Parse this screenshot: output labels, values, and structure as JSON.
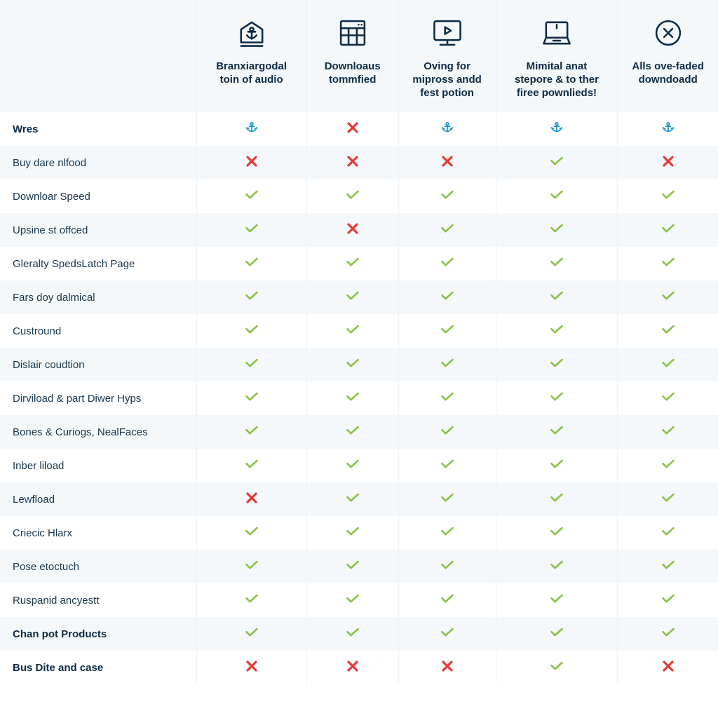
{
  "type": "comparison-table",
  "background_color": "#ffffff",
  "alt_row_color": "#f5f8fa",
  "border_color": "#e8eef2",
  "header_icon_color": "#0b2a45",
  "check_color": "#8bc34a",
  "x_color": "#e53935",
  "anchor_color": "#2196d4",
  "text_color": "#17364f",
  "bold_text_color": "#0b2a45",
  "label_fontsize": 15,
  "header_fontsize": 15,
  "columns": [
    {
      "icon": "anchor-badge",
      "label": "Branxiargodal toin of audio"
    },
    {
      "icon": "window-grid",
      "label": "Downloaus tommfied"
    },
    {
      "icon": "monitor-play",
      "label": "Oving for mipross andd fest potion"
    },
    {
      "icon": "laptop",
      "label": "Mimital anat stepore & to ther firee pownlieds!"
    },
    {
      "icon": "x-circle",
      "label": "Alls ove-faded downdoadd"
    }
  ],
  "rows": [
    {
      "label": "Wres",
      "bold": true,
      "cells": [
        "anchor",
        "x",
        "anchor",
        "anchor",
        "anchor"
      ]
    },
    {
      "label": "Buy dare nlfood",
      "bold": false,
      "cells": [
        "x",
        "x",
        "x",
        "check",
        "x"
      ]
    },
    {
      "label": "Downloar Speed",
      "bold": false,
      "cells": [
        "check",
        "check",
        "check",
        "check",
        "check"
      ]
    },
    {
      "label": "Upsine st offced",
      "bold": false,
      "cells": [
        "check",
        "x",
        "check",
        "check",
        "check"
      ]
    },
    {
      "label": "Gleralty SpedsLatch Page",
      "bold": false,
      "cells": [
        "check",
        "check",
        "check",
        "check",
        "check"
      ]
    },
    {
      "label": "Fars doy dalmical",
      "bold": false,
      "cells": [
        "check",
        "check",
        "check",
        "check",
        "check"
      ]
    },
    {
      "label": "Custround",
      "bold": false,
      "cells": [
        "check",
        "check",
        "check",
        "check",
        "check"
      ]
    },
    {
      "label": "Dislair coudtion",
      "bold": false,
      "cells": [
        "check",
        "check",
        "check",
        "check",
        "check"
      ]
    },
    {
      "label": "Dirviload & part Diwer Hyps",
      "bold": false,
      "cells": [
        "check",
        "check",
        "check",
        "check",
        "check"
      ]
    },
    {
      "label": "Bones & Curiogs, NealFaces",
      "bold": false,
      "cells": [
        "check",
        "check",
        "check",
        "check",
        "check"
      ]
    },
    {
      "label": "Inber liload",
      "bold": false,
      "cells": [
        "check",
        "check",
        "check",
        "check",
        "check"
      ]
    },
    {
      "label": "Lewfload",
      "bold": false,
      "cells": [
        "x",
        "check",
        "check",
        "check",
        "check"
      ]
    },
    {
      "label": "Criecic Hlarx",
      "bold": false,
      "cells": [
        "check",
        "check",
        "check",
        "check",
        "check"
      ]
    },
    {
      "label": "Pose etoctuch",
      "bold": false,
      "cells": [
        "check",
        "check",
        "check",
        "check",
        "check"
      ]
    },
    {
      "label": "Ruspanid ancyestt",
      "bold": false,
      "cells": [
        "check",
        "check",
        "check",
        "check",
        "check"
      ]
    },
    {
      "label": "Chan pot Products",
      "bold": true,
      "cells": [
        "check",
        "check",
        "check",
        "check",
        "check"
      ]
    },
    {
      "label": "Bus Dite and case",
      "bold": true,
      "cells": [
        "x",
        "x",
        "x",
        "check",
        "x"
      ]
    }
  ]
}
